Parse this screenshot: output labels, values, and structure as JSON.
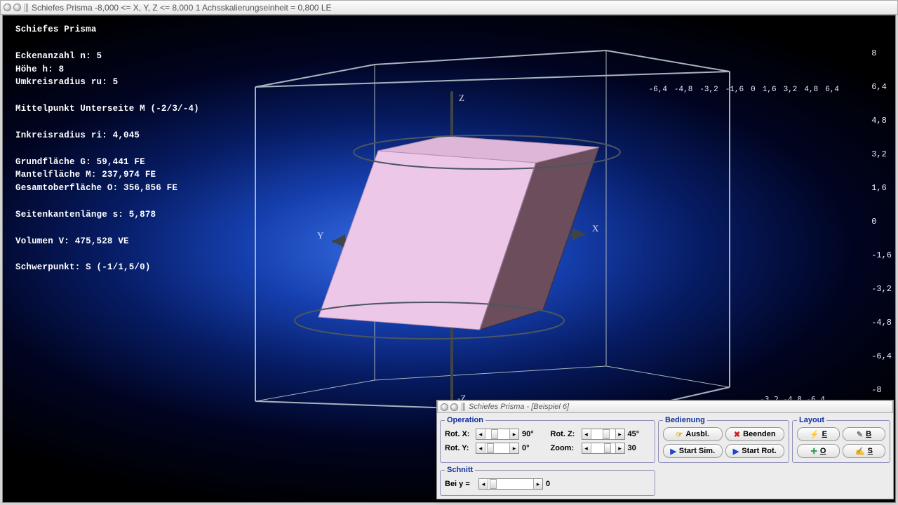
{
  "window": {
    "title": "Schiefes Prisma   -8,000 <= X, Y, Z <= 8,000   1 Achsskalierungseinheit = 0,800 LE"
  },
  "info": {
    "title": "Schiefes Prisma",
    "ecken": "Eckenanzahl n: 5",
    "hoehe": "Höhe h: 8",
    "umkreis": "Umkreisradius ru: 5",
    "mittelpunkt": "Mittelpunkt Unterseite M (-2/3/-4)",
    "inkreis": "Inkreisradius ri: 4,045",
    "grundfl": "Grundfläche G: 59,441 FE",
    "mantel": "Mantelfläche M: 237,974 FE",
    "gesamt": "Gesamtoberfläche O: 356,856 FE",
    "seiten": "Seitenkantenlänge s: 5,878",
    "volumen": "Volumen V: 475,528 VE",
    "schwerpunkt": "Schwerpunkt: S (-1/1,5/0)"
  },
  "axes": {
    "x_label": "X",
    "y_label": "Y",
    "z_label": "Z",
    "neg_z_label": "-Z",
    "x_ticks": [
      "-6,4",
      "-4,8",
      "-3,2",
      "-1,6",
      "0",
      "1,6",
      "3,2",
      "4,8",
      "6,4"
    ],
    "z_ticks": [
      "8",
      "6,4",
      "4,8",
      "3,2",
      "1,6",
      "0",
      "-1,6",
      "-3,2",
      "-4,8",
      "-6,4",
      "-8"
    ],
    "bottom_ticks": [
      "-3,2",
      "-4,8",
      "-6,4"
    ]
  },
  "scene": {
    "prism_light": "#ecc7e8",
    "prism_dark": "#6b4d5b",
    "prism_top": "#ddb6d8",
    "cube_line": "#a8b4bc",
    "ellipse_line": "#4a5660",
    "axis_color": "#3f4446",
    "tick_color": "#e8ecf8"
  },
  "panel": {
    "title": "Schiefes Prisma - [Beispiel 6]",
    "operation_legend": "Operation",
    "rotx_label": "Rot. X:",
    "roty_label": "Rot. Y:",
    "rotz_label": "Rot. Z:",
    "zoom_label": "Zoom:",
    "rotx_val": "90°",
    "roty_val": "0°",
    "rotz_val": "45°",
    "zoom_val": "30",
    "schnitt_legend": "Schnitt",
    "bei_y_label": "Bei y =",
    "bei_y_val": "0",
    "bedienung_legend": "Bedienung",
    "ausbl": "Ausbl.",
    "beenden": "Beenden",
    "startsim": "Start Sim.",
    "startrot": "Start Rot.",
    "layout_legend": "Layout",
    "lay_e": "E",
    "lay_b": "B",
    "lay_o": "O",
    "lay_s": "S",
    "thumb_pos": {
      "rotx": 8,
      "roty": 2,
      "rotz": 16,
      "zoom": 18,
      "schnitt": 2
    }
  },
  "colors": {
    "red": "#d02020",
    "blue": "#2040d0",
    "green": "#109030",
    "yellow": "#d8a000"
  }
}
